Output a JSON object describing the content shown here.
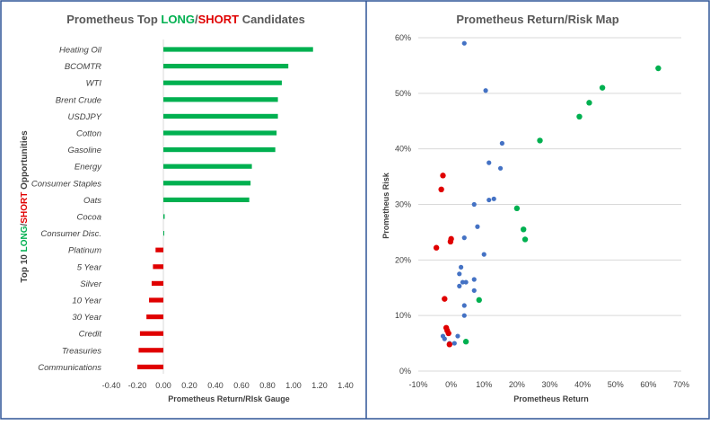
{
  "colors": {
    "long": "#00B050",
    "short": "#E00000",
    "blue": "#4472C4",
    "border": "#2F5597",
    "title": "#595959",
    "axis_text": "#404040",
    "gridline": "#D9D9D9"
  },
  "left_chart": {
    "title_parts": [
      {
        "text": "Prometheus Top ",
        "color": "#595959"
      },
      {
        "text": "LONG",
        "color": "#00B050"
      },
      {
        "text": "/",
        "color": "#595959"
      },
      {
        "text": "SHORT",
        "color": "#E00000"
      },
      {
        "text": " Candidates",
        "color": "#595959"
      }
    ],
    "ylabel_parts": [
      {
        "text": "Top 10 ",
        "color": "#404040"
      },
      {
        "text": "LONG",
        "color": "#00B050"
      },
      {
        "text": "/",
        "color": "#404040"
      },
      {
        "text": "SHORT",
        "color": "#E00000"
      },
      {
        "text": " Opportunities",
        "color": "#404040"
      }
    ]
  },
  "chart_data": [
    {
      "type": "bar",
      "orientation": "horizontal",
      "title": "Prometheus Top LONG/SHORT Candidates",
      "xlabel": "Prometheus Return/RIsk Gauge",
      "ylabel": "Top 10 LONG/SHORT Opportunities",
      "xlim": [
        -0.4,
        1.4
      ],
      "xticks": [
        "-0.40",
        "-0.20",
        "0.00",
        "0.20",
        "0.40",
        "0.60",
        "0.80",
        "1.00",
        "1.20",
        "1.40"
      ],
      "categories": [
        "Heating Oil",
        "BCOMTR",
        "WTI",
        "Brent Crude",
        "USDJPY",
        "Cotton",
        "Gasoline",
        "Energy",
        "Consumer Staples",
        "Oats",
        "Cocoa",
        "Consumer Disc.",
        "Platinum",
        "5 Year",
        "Silver",
        "10 Year",
        "30 Year",
        "Credit",
        "Treasuries",
        "Communications"
      ],
      "values": [
        1.15,
        0.96,
        0.91,
        0.88,
        0.88,
        0.87,
        0.86,
        0.68,
        0.67,
        0.66,
        0.01,
        0.005,
        -0.06,
        -0.08,
        -0.09,
        -0.11,
        -0.13,
        -0.18,
        -0.19,
        -0.2
      ]
    },
    {
      "type": "scatter",
      "title": "Prometheus Return/Risk Map",
      "xlabel": "Prometheus Return",
      "ylabel": "Prometheus Risk",
      "xlim": [
        -0.1,
        0.7
      ],
      "ylim": [
        0.0,
        0.6
      ],
      "xticks": [
        "-10%",
        "0%",
        "10%",
        "20%",
        "30%",
        "40%",
        "50%",
        "60%",
        "70%"
      ],
      "yticks": [
        "0%",
        "10%",
        "20%",
        "30%",
        "40%",
        "50%",
        "60%"
      ],
      "series": [
        {
          "color": "#00B050",
          "points": [
            [
              0.63,
              0.545
            ],
            [
              0.46,
              0.51
            ],
            [
              0.42,
              0.483
            ],
            [
              0.39,
              0.458
            ],
            [
              0.27,
              0.415
            ],
            [
              0.2,
              0.293
            ],
            [
              0.22,
              0.255
            ],
            [
              0.225,
              0.237
            ],
            [
              0.085,
              0.128
            ],
            [
              0.045,
              0.053
            ]
          ]
        },
        {
          "color": "#4472C4",
          "points": [
            [
              0.04,
              0.59
            ],
            [
              0.105,
              0.505
            ],
            [
              0.155,
              0.41
            ],
            [
              0.115,
              0.375
            ],
            [
              0.15,
              0.365
            ],
            [
              0.115,
              0.308
            ],
            [
              0.13,
              0.31
            ],
            [
              0.07,
              0.3
            ],
            [
              0.08,
              0.26
            ],
            [
              0.04,
              0.24
            ],
            [
              0.1,
              0.21
            ],
            [
              0.03,
              0.187
            ],
            [
              0.025,
              0.175
            ],
            [
              0.035,
              0.16
            ],
            [
              0.045,
              0.16
            ],
            [
              0.07,
              0.165
            ],
            [
              0.025,
              0.153
            ],
            [
              0.07,
              0.145
            ],
            [
              0.04,
              0.118
            ],
            [
              0.04,
              0.1
            ],
            [
              -0.025,
              0.063
            ],
            [
              0.02,
              0.063
            ],
            [
              -0.02,
              0.058
            ],
            [
              -0.005,
              0.05
            ],
            [
              0.01,
              0.05
            ]
          ]
        },
        {
          "color": "#E00000",
          "points": [
            [
              -0.025,
              0.352
            ],
            [
              -0.03,
              0.327
            ],
            [
              0.0,
              0.238
            ],
            [
              -0.002,
              0.233
            ],
            [
              -0.045,
              0.222
            ],
            [
              -0.02,
              0.13
            ],
            [
              -0.015,
              0.078
            ],
            [
              -0.012,
              0.073
            ],
            [
              -0.008,
              0.068
            ],
            [
              -0.005,
              0.048
            ]
          ]
        }
      ]
    }
  ]
}
